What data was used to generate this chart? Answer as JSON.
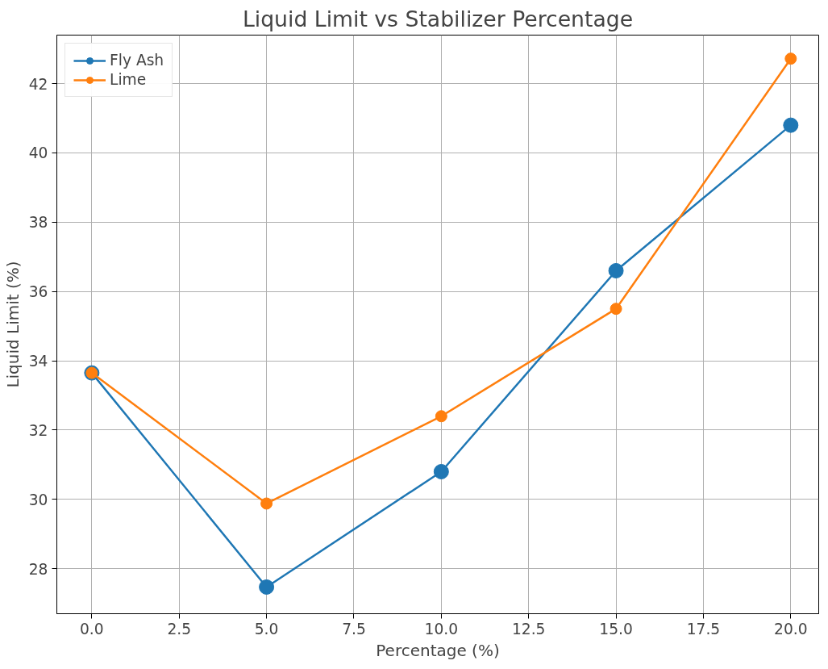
{
  "chart_data": {
    "type": "line",
    "title": "Liquid Limit vs Stabilizer Percentage",
    "xlabel": "Percentage (%)",
    "ylabel": "Liquid Limit (%)",
    "x": [
      0,
      5,
      10,
      15,
      20
    ],
    "series": [
      {
        "name": "Fly Ash",
        "color": "#1f77b4",
        "values": [
          33.65,
          27.47,
          30.8,
          36.6,
          40.8
        ]
      },
      {
        "name": "Lime",
        "color": "#ff7f0e",
        "values": [
          33.65,
          29.88,
          32.4,
          35.5,
          42.72
        ]
      }
    ],
    "xlim": [
      -1,
      20.8
    ],
    "ylim": [
      26.7,
      43.4
    ],
    "xticks": [
      {
        "value": 0,
        "label": "0.0"
      },
      {
        "value": 2.5,
        "label": "2.5"
      },
      {
        "value": 5,
        "label": "5.0"
      },
      {
        "value": 7.5,
        "label": "7.5"
      },
      {
        "value": 10,
        "label": "10.0"
      },
      {
        "value": 12.5,
        "label": "12.5"
      },
      {
        "value": 15,
        "label": "15.0"
      },
      {
        "value": 17.5,
        "label": "17.5"
      },
      {
        "value": 20,
        "label": "20.0"
      }
    ],
    "yticks": [
      28,
      30,
      32,
      34,
      36,
      38,
      40,
      42
    ],
    "grid": true,
    "legend": "top left",
    "marker": "circle",
    "line_style": "solid"
  }
}
